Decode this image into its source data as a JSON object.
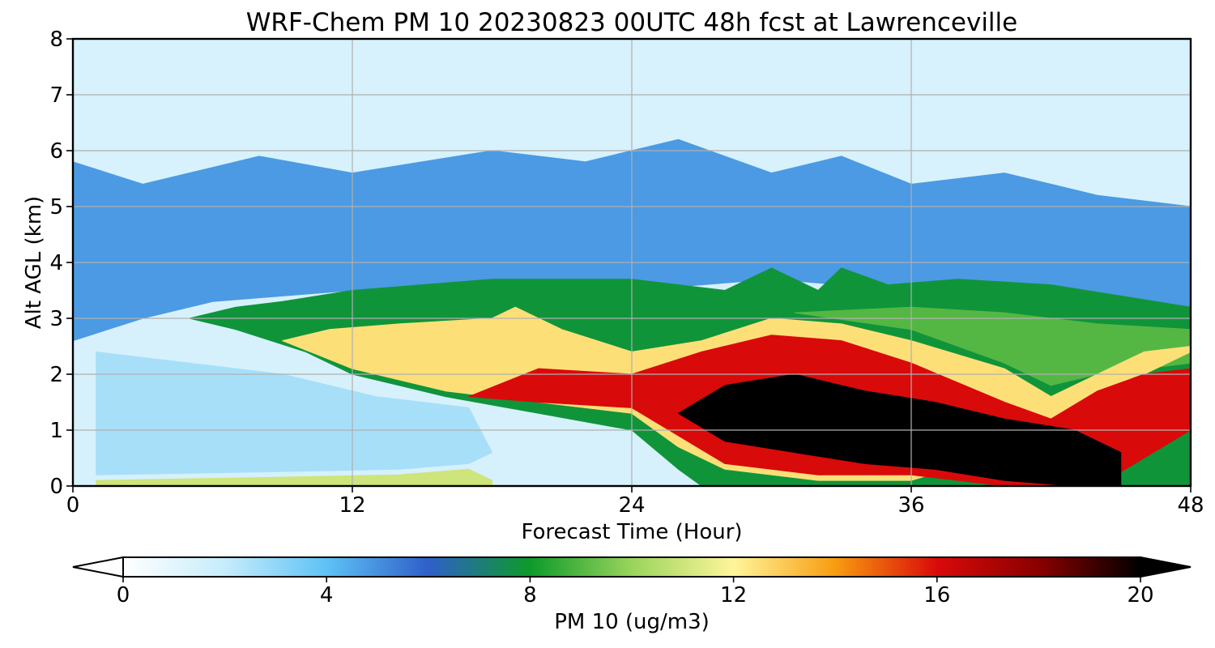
{
  "chart_data": {
    "type": "heatmap",
    "title": "WRF-Chem PM 10  20230823 00UTC 48h fcst at Lawrenceville",
    "xlabel": "Forecast Time (Hour)",
    "ylabel": "Alt AGL (km)",
    "xlim": [
      0,
      48
    ],
    "ylim": [
      0,
      8
    ],
    "x_ticks": [
      0,
      12,
      24,
      36,
      48
    ],
    "y_ticks": [
      0,
      1,
      2,
      3,
      4,
      5,
      6,
      7,
      8
    ],
    "grid": true,
    "colorbar": {
      "label": "PM 10  (ug/m3)",
      "min": 0,
      "max": 20,
      "ticks": [
        0,
        4,
        8,
        12,
        16,
        20
      ],
      "extend": "both",
      "orientation": "horizontal",
      "colors": [
        "#ffffff",
        "#c6ecfb",
        "#5ec2f5",
        "#2f5fc9",
        "#0d9a2a",
        "#9ad45c",
        "#fff59a",
        "#f89c10",
        "#d90a0a",
        "#8a0000",
        "#000000"
      ]
    },
    "layers": [
      {
        "name": "upper_air",
        "value": 1.4,
        "top": [
          [
            0,
            8
          ],
          [
            48,
            8
          ]
        ],
        "bottom": [
          [
            0,
            5.8
          ],
          [
            3,
            5.4
          ],
          [
            8,
            5.9
          ],
          [
            12,
            5.6
          ],
          [
            18,
            6.0
          ],
          [
            22,
            5.8
          ],
          [
            26,
            6.2
          ],
          [
            30,
            5.6
          ],
          [
            33,
            5.9
          ],
          [
            36,
            5.4
          ],
          [
            40,
            5.6
          ],
          [
            44,
            5.2
          ],
          [
            48,
            5.0
          ]
        ]
      },
      {
        "name": "blue_band",
        "value": 4.8,
        "top": [
          [
            0,
            5.8
          ],
          [
            3,
            5.4
          ],
          [
            8,
            5.9
          ],
          [
            12,
            5.6
          ],
          [
            18,
            6.0
          ],
          [
            22,
            5.8
          ],
          [
            26,
            6.2
          ],
          [
            30,
            5.6
          ],
          [
            33,
            5.9
          ],
          [
            36,
            5.4
          ],
          [
            40,
            5.6
          ],
          [
            44,
            5.2
          ],
          [
            48,
            5.0
          ]
        ],
        "bottom": [
          [
            0,
            2.6
          ],
          [
            3,
            3.0
          ],
          [
            6,
            3.3
          ],
          [
            9,
            3.4
          ],
          [
            12,
            3.5
          ],
          [
            18,
            3.6
          ],
          [
            24,
            3.5
          ],
          [
            30,
            3.7
          ],
          [
            36,
            3.5
          ],
          [
            42,
            3.4
          ],
          [
            48,
            3.1
          ]
        ]
      },
      {
        "name": "green_band",
        "value": 7.8,
        "top": [
          [
            5,
            3.0
          ],
          [
            7,
            3.2
          ],
          [
            9,
            3.3
          ],
          [
            12,
            3.5
          ],
          [
            18,
            3.7
          ],
          [
            24,
            3.7
          ],
          [
            28,
            3.5
          ],
          [
            30,
            3.9
          ],
          [
            32,
            3.5
          ],
          [
            33,
            3.9
          ],
          [
            35,
            3.6
          ],
          [
            38,
            3.7
          ],
          [
            42,
            3.6
          ],
          [
            45,
            3.4
          ],
          [
            48,
            3.2
          ]
        ],
        "bottom": [
          [
            5,
            3.0
          ],
          [
            7,
            2.8
          ],
          [
            10,
            2.4
          ],
          [
            12,
            2.0
          ],
          [
            16,
            1.6
          ],
          [
            20,
            1.3
          ],
          [
            24,
            1.0
          ],
          [
            26,
            0.3
          ],
          [
            27,
            0.0
          ],
          [
            48,
            0.0
          ]
        ]
      },
      {
        "name": "light_green",
        "value": 9.0,
        "top": [
          [
            31,
            3.1
          ],
          [
            36,
            3.2
          ],
          [
            40,
            3.1
          ],
          [
            44,
            2.9
          ],
          [
            48,
            2.8
          ]
        ],
        "bottom": [
          [
            31,
            3.1
          ],
          [
            36,
            2.8
          ],
          [
            40,
            2.2
          ],
          [
            42,
            1.8
          ],
          [
            44,
            2.0
          ],
          [
            48,
            2.2
          ]
        ]
      },
      {
        "name": "orange_core",
        "value": 12.5,
        "top": [
          [
            9,
            2.6
          ],
          [
            11,
            2.8
          ],
          [
            14,
            2.9
          ],
          [
            18,
            3.0
          ],
          [
            19,
            3.2
          ],
          [
            21,
            2.8
          ],
          [
            24,
            2.4
          ],
          [
            27,
            2.6
          ],
          [
            30,
            3.0
          ],
          [
            33,
            2.9
          ],
          [
            36,
            2.6
          ],
          [
            40,
            2.1
          ],
          [
            42,
            1.6
          ],
          [
            44,
            2.0
          ],
          [
            46,
            2.4
          ],
          [
            48,
            2.5
          ]
        ],
        "bottom": [
          [
            9,
            2.6
          ],
          [
            12,
            2.1
          ],
          [
            16,
            1.7
          ],
          [
            20,
            1.5
          ],
          [
            24,
            1.3
          ],
          [
            26,
            0.7
          ],
          [
            28,
            0.3
          ],
          [
            32,
            0.1
          ],
          [
            36,
            0.1
          ],
          [
            40,
            0.6
          ],
          [
            44,
            1.0
          ],
          [
            46,
            2.0
          ],
          [
            48,
            2.4
          ]
        ]
      },
      {
        "name": "red_core",
        "value": 16.0,
        "top": [
          [
            17,
            1.6
          ],
          [
            20,
            2.1
          ],
          [
            24,
            2.0
          ],
          [
            27,
            2.4
          ],
          [
            30,
            2.7
          ],
          [
            33,
            2.6
          ],
          [
            36,
            2.2
          ],
          [
            40,
            1.5
          ],
          [
            42,
            1.2
          ],
          [
            44,
            1.7
          ],
          [
            46,
            2.0
          ],
          [
            48,
            2.1
          ]
        ],
        "bottom": [
          [
            17,
            1.6
          ],
          [
            20,
            1.5
          ],
          [
            24,
            1.4
          ],
          [
            26,
            0.9
          ],
          [
            28,
            0.4
          ],
          [
            32,
            0.2
          ],
          [
            36,
            0.2
          ],
          [
            40,
            0.0
          ],
          [
            44,
            0.0
          ],
          [
            46,
            0.5
          ],
          [
            48,
            1.0
          ]
        ]
      },
      {
        "name": "max_core",
        "value": 20.0,
        "top": [
          [
            26,
            1.3
          ],
          [
            28,
            1.8
          ],
          [
            31,
            2.0
          ],
          [
            34,
            1.7
          ],
          [
            37,
            1.5
          ],
          [
            40,
            1.2
          ],
          [
            43,
            1.0
          ],
          [
            45,
            0.6
          ]
        ],
        "bottom": [
          [
            26,
            1.3
          ],
          [
            28,
            0.8
          ],
          [
            31,
            0.6
          ],
          [
            34,
            0.4
          ],
          [
            37,
            0.3
          ],
          [
            40,
            0.1
          ],
          [
            43,
            0.0
          ],
          [
            45,
            0.0
          ]
        ]
      },
      {
        "name": "surface_layer",
        "value": 11.0,
        "top": [
          [
            1,
            0.1
          ],
          [
            8,
            0.15
          ],
          [
            14,
            0.2
          ],
          [
            17,
            0.3
          ],
          [
            18,
            0.1
          ]
        ],
        "bottom": [
          [
            1,
            0.0
          ],
          [
            18,
            0.0
          ]
        ]
      },
      {
        "name": "lower_clean",
        "value": 2.6,
        "top": [
          [
            1,
            2.4
          ],
          [
            5,
            2.2
          ],
          [
            9,
            2.0
          ],
          [
            13,
            1.6
          ],
          [
            17,
            1.4
          ],
          [
            18,
            0.6
          ]
        ],
        "bottom": [
          [
            1,
            0.2
          ],
          [
            8,
            0.25
          ],
          [
            14,
            0.3
          ],
          [
            17,
            0.4
          ],
          [
            18,
            0.6
          ]
        ]
      }
    ]
  }
}
